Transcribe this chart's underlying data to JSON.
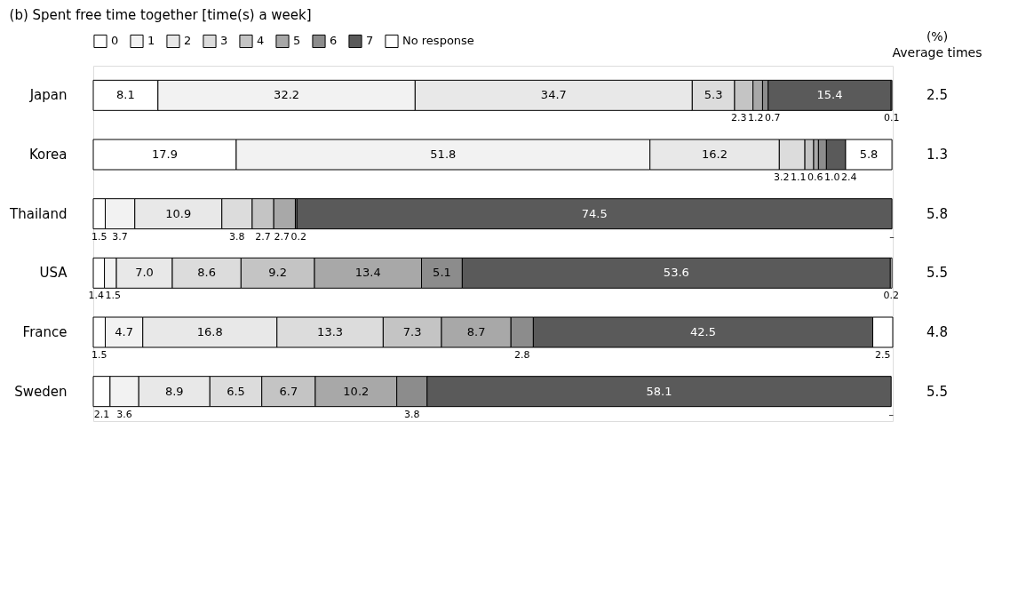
{
  "chart_data": {
    "type": "bar",
    "orientation": "horizontal",
    "stacked": true,
    "title": "(b) Spent free time together  [time(s) a week]",
    "legend": "top",
    "categories": [
      "Japan",
      "Korea",
      "Thailand",
      "USA",
      "France",
      "Sweden"
    ],
    "series": [
      {
        "name": "0",
        "color": "#ffffff",
        "values": [
          8.1,
          17.9,
          1.5,
          1.4,
          1.5,
          2.1
        ],
        "value_labels": [
          "8.1",
          "17.9",
          "1.5",
          "1.4",
          "1.5",
          "2.1"
        ]
      },
      {
        "name": "1",
        "color": "#f2f2f2",
        "values": [
          32.2,
          51.8,
          3.7,
          1.5,
          4.7,
          3.6
        ],
        "value_labels": [
          "32.2",
          "51.8",
          "3.7",
          "1.5",
          "4.7",
          "3.6"
        ]
      },
      {
        "name": "2",
        "color": "#e8e8e8",
        "values": [
          34.7,
          16.2,
          10.9,
          7.0,
          16.8,
          8.9
        ],
        "value_labels": [
          "34.7",
          "16.2",
          "10.9",
          "7.0",
          "16.8",
          "8.9"
        ]
      },
      {
        "name": "3",
        "color": "#dcdcdc",
        "values": [
          5.3,
          3.2,
          3.8,
          8.6,
          13.3,
          6.5
        ],
        "value_labels": [
          "5.3",
          "3.2",
          "3.8",
          "8.6",
          "13.3",
          "6.5"
        ]
      },
      {
        "name": "4",
        "color": "#c4c4c4",
        "values": [
          2.3,
          1.1,
          2.7,
          9.2,
          7.3,
          6.7
        ],
        "value_labels": [
          "2.3",
          "1.1",
          "2.7",
          "9.2",
          "7.3",
          "6.7"
        ]
      },
      {
        "name": "5",
        "color": "#a8a8a8",
        "values": [
          1.2,
          0.6,
          2.7,
          13.4,
          8.7,
          10.2
        ],
        "value_labels": [
          "1.2",
          "0.6",
          "2.7",
          "13.4",
          "8.7",
          "10.2"
        ]
      },
      {
        "name": "6",
        "color": "#8c8c8c",
        "values": [
          0.7,
          1.0,
          0.2,
          5.1,
          2.8,
          3.8
        ],
        "value_labels": [
          "0.7",
          "1.0",
          "0.2",
          "5.1",
          "2.8",
          "3.8"
        ]
      },
      {
        "name": "7",
        "color": "#5a5a5a",
        "values": [
          15.4,
          2.4,
          74.5,
          53.6,
          42.5,
          58.1
        ],
        "value_labels": [
          "15.4",
          "2.4",
          "74.5",
          "53.6",
          "42.5",
          "58.1"
        ]
      },
      {
        "name": "No response",
        "color": "#ffffff",
        "values": [
          0.1,
          5.8,
          null,
          0.2,
          2.5,
          null
        ],
        "value_labels": [
          "0.1",
          "5.8",
          "–",
          "0.2",
          "2.5",
          "–"
        ]
      }
    ],
    "annotations": [
      "(%)",
      "Average times",
      "2.5",
      "1.3",
      "5.8",
      "5.5",
      "4.8",
      "5.5"
    ]
  }
}
